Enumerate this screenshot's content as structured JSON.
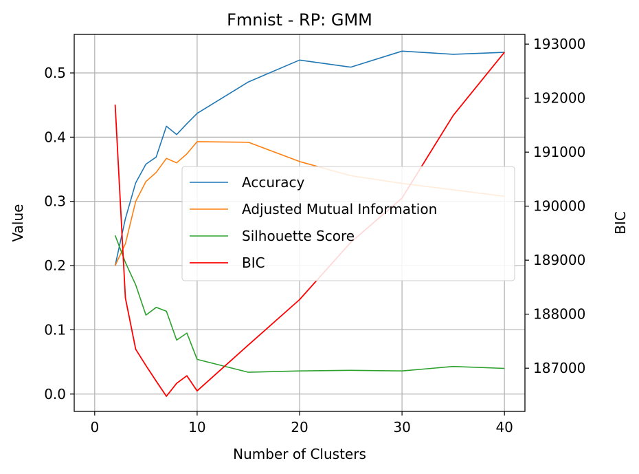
{
  "chart_data": {
    "type": "line",
    "title": "Fmnist - RP: GMM",
    "xlabel": "Number of Clusters",
    "ylabel": "Value",
    "y2label": "BIC",
    "xlim": [
      -2,
      42
    ],
    "ylim": [
      -0.027,
      0.56
    ],
    "y2lim": [
      186200,
      193180
    ],
    "xticks": [
      0,
      10,
      20,
      30,
      40
    ],
    "yticks": [
      0.0,
      0.1,
      0.2,
      0.3,
      0.4,
      0.5
    ],
    "y2ticks": [
      187000,
      188000,
      189000,
      190000,
      191000,
      192000,
      193000
    ],
    "grid": true,
    "legend_position": "center-right",
    "x": [
      2,
      3,
      4,
      5,
      6,
      7,
      8,
      9,
      10,
      15,
      20,
      25,
      30,
      35,
      40
    ],
    "series": [
      {
        "name": "Accuracy",
        "axis": "left",
        "color": "#1f77b4",
        "values": [
          0.2,
          0.273,
          0.329,
          0.358,
          0.369,
          0.417,
          0.404,
          0.421,
          0.437,
          0.486,
          0.52,
          0.509,
          0.534,
          0.529,
          0.532
        ]
      },
      {
        "name": "Adjusted Mutual Information",
        "axis": "left",
        "color": "#ff7f0e",
        "values": [
          0.2,
          0.234,
          0.3,
          0.331,
          0.345,
          0.367,
          0.36,
          0.374,
          0.393,
          0.392,
          0.362,
          0.34,
          0.328,
          0.318,
          0.308
        ]
      },
      {
        "name": "Silhouette Score",
        "axis": "left",
        "color": "#2ca02c",
        "values": [
          0.247,
          0.205,
          0.17,
          0.123,
          0.135,
          0.129,
          0.084,
          0.095,
          0.054,
          0.034,
          0.036,
          0.037,
          0.036,
          0.043,
          0.04
        ]
      },
      {
        "name": "BIC",
        "axis": "right",
        "color": "#ff0000",
        "values": [
          191880,
          188300,
          187350,
          187050,
          186760,
          186480,
          186720,
          186860,
          186580,
          187430,
          188270,
          189330,
          190150,
          191680,
          192850
        ]
      }
    ]
  }
}
